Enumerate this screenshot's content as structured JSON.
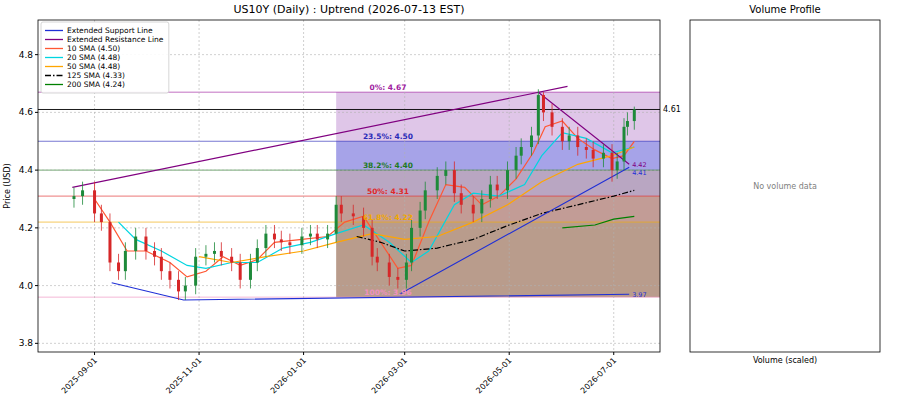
{
  "chart_data": {
    "type": "candlestick",
    "title": "US10Y (Daily) : Uptrend (2026-07-13 EST)",
    "y_label": "Price (USD)",
    "xlim": [
      "2025-07-30",
      "2026-07-28"
    ],
    "ylim": [
      3.77,
      4.92
    ],
    "xticks": [
      "2025-09-01",
      "2025-11-01",
      "2026-01-01",
      "2026-03-01",
      "2026-05-01",
      "2026-07-01"
    ],
    "yticks": [
      3.8,
      {
        "value": 4.0,
        "label": "4.0"
      },
      4.2,
      4.4,
      4.6,
      4.8
    ],
    "grid": true,
    "legend": "upper left",
    "candles": {
      "x": [
        "2025-08-20",
        "2025-08-25",
        "2025-09-01",
        "2025-09-05",
        "2025-09-10",
        "2025-09-15",
        "2025-09-19",
        "2025-09-25",
        "2025-10-01",
        "2025-10-06",
        "2025-10-10",
        "2025-10-15",
        "2025-10-20",
        "2025-10-24",
        "2025-10-30",
        "2025-11-05",
        "2025-11-10",
        "2025-11-14",
        "2025-11-20",
        "2025-11-25",
        "2025-12-01",
        "2025-12-05",
        "2025-12-10",
        "2025-12-15",
        "2025-12-19",
        "2025-12-24",
        "2025-12-31",
        "2026-01-05",
        "2026-01-09",
        "2026-01-15",
        "2026-01-20",
        "2026-01-23",
        "2026-01-30",
        "2026-02-05",
        "2026-02-10",
        "2026-02-13",
        "2026-02-20",
        "2026-02-25",
        "2026-03-02",
        "2026-03-05",
        "2026-03-10",
        "2026-03-13",
        "2026-03-20",
        "2026-03-25",
        "2026-03-30",
        "2026-04-03",
        "2026-04-10",
        "2026-04-15",
        "2026-04-20",
        "2026-04-24",
        "2026-04-30",
        "2026-05-05",
        "2026-05-08",
        "2026-05-14",
        "2026-05-18",
        "2026-05-21",
        "2026-05-26",
        "2026-06-01",
        "2026-06-05",
        "2026-06-10",
        "2026-06-15",
        "2026-06-19",
        "2026-06-25",
        "2026-06-30",
        "2026-07-03",
        "2026-07-07",
        "2026-07-09",
        "2026-07-13"
      ],
      "open": [
        4.3,
        4.31,
        4.33,
        4.25,
        4.22,
        4.08,
        4.05,
        4.12,
        4.17,
        4.12,
        4.1,
        4.05,
        4.02,
        3.98,
        4.0,
        4.1,
        4.11,
        4.12,
        4.1,
        4.08,
        4.02,
        4.08,
        4.13,
        4.18,
        4.16,
        4.15,
        4.14,
        4.17,
        4.18,
        4.16,
        4.18,
        4.28,
        4.25,
        4.24,
        4.2,
        4.1,
        4.08,
        4.03,
        4.02,
        4.08,
        4.2,
        4.26,
        4.33,
        4.38,
        4.4,
        4.32,
        4.28,
        4.25,
        4.3,
        4.35,
        4.33,
        4.4,
        4.45,
        4.48,
        4.52,
        4.66,
        4.6,
        4.55,
        4.5,
        4.52,
        4.48,
        4.47,
        4.44,
        4.46,
        4.4,
        4.43,
        4.55,
        4.57
      ],
      "high": [
        4.34,
        4.36,
        4.36,
        4.28,
        4.25,
        4.11,
        4.15,
        4.2,
        4.2,
        4.15,
        4.13,
        4.08,
        4.05,
        4.03,
        4.13,
        4.14,
        4.15,
        4.15,
        4.13,
        4.11,
        4.11,
        4.16,
        4.21,
        4.21,
        4.19,
        4.18,
        4.2,
        4.21,
        4.21,
        4.21,
        4.31,
        4.31,
        4.28,
        4.27,
        4.23,
        4.13,
        4.11,
        4.06,
        4.11,
        4.23,
        4.29,
        4.36,
        4.41,
        4.43,
        4.43,
        4.35,
        4.31,
        4.33,
        4.38,
        4.38,
        4.43,
        4.48,
        4.51,
        4.55,
        4.68,
        4.67,
        4.63,
        4.58,
        4.55,
        4.55,
        4.51,
        4.5,
        4.49,
        4.49,
        4.46,
        4.58,
        4.6,
        4.62
      ],
      "low": [
        4.27,
        4.28,
        4.22,
        4.19,
        4.05,
        4.02,
        4.02,
        4.09,
        4.09,
        4.07,
        4.02,
        3.99,
        3.95,
        3.95,
        3.97,
        4.07,
        4.08,
        4.07,
        4.05,
        3.99,
        3.99,
        4.05,
        4.1,
        4.13,
        4.12,
        4.11,
        4.11,
        4.14,
        4.13,
        4.13,
        4.15,
        4.22,
        4.21,
        4.17,
        4.07,
        4.05,
        4.0,
        3.99,
        3.99,
        4.05,
        4.17,
        4.23,
        4.3,
        4.35,
        4.29,
        4.25,
        4.22,
        4.22,
        4.27,
        4.3,
        4.3,
        4.37,
        4.42,
        4.45,
        4.49,
        4.57,
        4.52,
        4.47,
        4.47,
        4.45,
        4.44,
        4.41,
        4.41,
        4.36,
        4.37,
        4.4,
        4.52,
        4.54
      ],
      "close": [
        4.31,
        4.33,
        4.25,
        4.22,
        4.08,
        4.05,
        4.12,
        4.17,
        4.12,
        4.1,
        4.05,
        4.02,
        3.98,
        4.0,
        4.1,
        4.11,
        4.12,
        4.1,
        4.08,
        4.02,
        4.08,
        4.13,
        4.18,
        4.16,
        4.15,
        4.14,
        4.17,
        4.18,
        4.16,
        4.18,
        4.28,
        4.25,
        4.24,
        4.2,
        4.1,
        4.08,
        4.03,
        4.02,
        4.08,
        4.2,
        4.26,
        4.33,
        4.38,
        4.4,
        4.32,
        4.28,
        4.25,
        4.3,
        4.35,
        4.33,
        4.4,
        4.45,
        4.48,
        4.52,
        4.66,
        4.6,
        4.55,
        4.5,
        4.52,
        4.48,
        4.47,
        4.44,
        4.46,
        4.4,
        4.43,
        4.55,
        4.57,
        4.61
      ]
    },
    "series": [
      {
        "name": "Extended Support Line",
        "color": "#1f2fd6",
        "line_style": "solid",
        "x": [
          "2025-09-11",
          "2025-10-23",
          "2026-07-10",
          "2026-02-26",
          "2026-02-26",
          "2026-07-10"
        ],
        "values": [
          4.01,
          3.95,
          3.97,
          null,
          3.97,
          4.41
        ]
      },
      {
        "name": "Extended Resistance Line",
        "color": "#800080",
        "line_style": "solid",
        "x": [
          "2025-08-19",
          "2026-06-04",
          "2026-05-18",
          "2026-05-18",
          "2026-07-10"
        ],
        "values": [
          4.34,
          4.69,
          null,
          4.67,
          4.42
        ]
      },
      {
        "name": "10 SMA (4.50)",
        "color": "#ff5733",
        "line_style": "solid",
        "x": [
          "2025-09-01",
          "2025-09-10",
          "2025-09-20",
          "2025-10-01",
          "2025-10-15",
          "2025-10-25",
          "2025-11-05",
          "2025-11-15",
          "2025-11-25",
          "2025-12-05",
          "2025-12-15",
          "2025-12-31",
          "2026-01-15",
          "2026-01-25",
          "2026-02-05",
          "2026-02-15",
          "2026-02-25",
          "2026-03-05",
          "2026-03-15",
          "2026-03-25",
          "2026-04-05",
          "2026-04-15",
          "2026-04-25",
          "2026-05-05",
          "2026-05-15",
          "2026-05-22",
          "2026-06-01",
          "2026-06-10",
          "2026-06-20",
          "2026-06-30",
          "2026-07-07",
          "2026-07-13"
        ],
        "values": [
          4.3,
          4.22,
          4.12,
          4.12,
          4.08,
          4.03,
          4.05,
          4.1,
          4.07,
          4.09,
          4.15,
          4.16,
          4.17,
          4.22,
          4.24,
          4.15,
          4.06,
          4.07,
          4.22,
          4.35,
          4.34,
          4.28,
          4.31,
          4.37,
          4.46,
          4.55,
          4.57,
          4.51,
          4.47,
          4.44,
          4.45,
          4.5
        ]
      },
      {
        "name": "20 SMA (4.48)",
        "color": "#00d5e0",
        "line_style": "solid",
        "x": [
          "2025-09-15",
          "2025-09-25",
          "2025-10-10",
          "2025-10-25",
          "2025-11-05",
          "2025-11-20",
          "2025-12-05",
          "2025-12-20",
          "2026-01-05",
          "2026-01-20",
          "2026-02-05",
          "2026-02-20",
          "2026-03-05",
          "2026-03-15",
          "2026-03-30",
          "2026-04-10",
          "2026-04-25",
          "2026-05-10",
          "2026-05-20",
          "2026-06-01",
          "2026-06-15",
          "2026-06-30",
          "2026-07-13"
        ],
        "values": [
          4.22,
          4.16,
          4.12,
          4.07,
          4.06,
          4.08,
          4.08,
          4.13,
          4.15,
          4.18,
          4.21,
          4.15,
          4.08,
          4.12,
          4.28,
          4.32,
          4.31,
          4.35,
          4.45,
          4.53,
          4.51,
          4.46,
          4.48
        ]
      },
      {
        "name": "50 SMA (4.48)",
        "color": "#ffa500",
        "line_style": "solid",
        "x": [
          "2025-11-01",
          "2025-11-20",
          "2025-12-10",
          "2026-01-01",
          "2026-01-20",
          "2026-02-10",
          "2026-03-01",
          "2026-03-20",
          "2026-04-10",
          "2026-04-30",
          "2026-05-20",
          "2026-06-10",
          "2026-06-30",
          "2026-07-13"
        ],
        "values": [
          4.1,
          4.08,
          4.1,
          4.12,
          4.15,
          4.18,
          4.16,
          4.17,
          4.22,
          4.28,
          4.36,
          4.42,
          4.45,
          4.48
        ]
      },
      {
        "name": "125 SMA (4.33)",
        "color": "#000000",
        "line_style": "dashdot",
        "x": [
          "2026-02-01",
          "2026-02-15",
          "2026-03-01",
          "2026-03-20",
          "2026-04-10",
          "2026-05-01",
          "2026-05-20",
          "2026-06-10",
          "2026-07-01",
          "2026-07-13"
        ],
        "values": [
          4.17,
          4.15,
          4.12,
          4.13,
          4.16,
          4.21,
          4.25,
          4.28,
          4.31,
          4.33
        ]
      },
      {
        "name": "200 SMA (4.24)",
        "color": "#008000",
        "line_style": "solid",
        "x": [
          "2026-06-01",
          "2026-06-20",
          "2026-07-01",
          "2026-07-13"
        ],
        "values": [
          4.2,
          4.21,
          4.23,
          4.24
        ]
      }
    ],
    "fib": {
      "x": "2026-01-20",
      "levels": [
        {
          "label": "0%: 4.67",
          "value": 4.67,
          "color": "#a020a0"
        },
        {
          "label": "23.5%: 4.50",
          "value": 4.5,
          "color": "#2a2ab8"
        },
        {
          "label": "38.2%: 4.40",
          "value": 4.4,
          "color": "#1f7a1f"
        },
        {
          "label": "50%: 4.31",
          "value": 4.31,
          "color": "#e02828"
        },
        {
          "label": "61.8%: 4.22",
          "value": 4.22,
          "color": "#f0a800"
        },
        {
          "label": "100%: 3.96",
          "value": 3.96,
          "color": "#f090c0"
        }
      ]
    },
    "hlines": [
      {
        "value": 4.61,
        "color": "#000000"
      }
    ],
    "annotations": [
      {
        "x": "2026-07-10",
        "value": 4.42,
        "color": "#800080"
      },
      {
        "x": "2026-07-10",
        "value": 4.41,
        "color": "#1f2fd6"
      },
      {
        "x": "2026-07-10",
        "value": 3.97,
        "color": "#1f2fd6"
      }
    ],
    "volume_panel": {
      "title": "Volume Profile",
      "message": "No volume data",
      "x_label": "Volume (scaled)",
      "tick_labels": false
    }
  }
}
